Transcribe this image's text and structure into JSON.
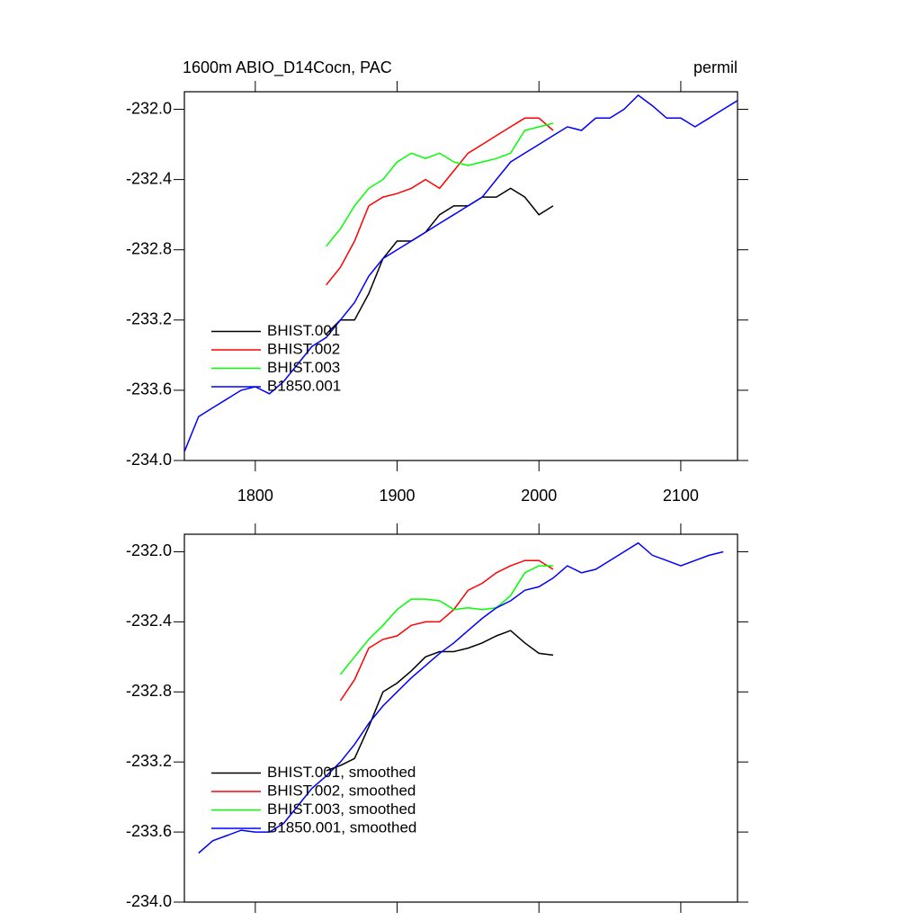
{
  "chart_data": [
    {
      "type": "line",
      "title": "1600m ABIO_D14Cocn, PAC",
      "right_title": "permil",
      "x": [
        1750,
        1760,
        1770,
        1780,
        1790,
        1800,
        1810,
        1820,
        1830,
        1840,
        1850,
        1860,
        1870,
        1880,
        1890,
        1900,
        1910,
        1920,
        1930,
        1940,
        1950,
        1960,
        1970,
        1980,
        1990,
        2000,
        2010,
        2020,
        2030,
        2040,
        2050,
        2060,
        2070,
        2080,
        2090,
        2100,
        2110,
        2120,
        2130,
        2140
      ],
      "xlim": [
        1750,
        2140
      ],
      "xticks": [
        1800,
        1900,
        2000,
        2100
      ],
      "ylim": [
        -234.0,
        -231.9
      ],
      "yticks": [
        {
          "value": -234,
          "label": "-234.0"
        },
        {
          "value": -233.6,
          "label": "-233.6"
        },
        {
          "value": -233.2,
          "label": "-233.2"
        },
        {
          "value": -232.8,
          "label": "-232.8"
        },
        {
          "value": -232.4,
          "label": "-232.4"
        },
        {
          "value": -232,
          "label": "-232.0"
        }
      ],
      "legend": "lower left",
      "xtick_labels": true,
      "series": [
        {
          "name": "BHIST.001",
          "color": "#000000",
          "values": [
            null,
            null,
            null,
            null,
            null,
            null,
            null,
            null,
            null,
            null,
            -233.28,
            -233.2,
            -233.2,
            -233.05,
            -232.85,
            -232.75,
            -232.75,
            -232.7,
            -232.6,
            -232.55,
            -232.55,
            -232.5,
            -232.5,
            -232.45,
            -232.5,
            -232.6,
            -232.55,
            null,
            null,
            null,
            null,
            null,
            null,
            null,
            null,
            null,
            null,
            null,
            null,
            null
          ]
        },
        {
          "name": "BHIST.002",
          "color": "#ff0000",
          "values": [
            null,
            null,
            null,
            null,
            null,
            null,
            null,
            null,
            null,
            null,
            -233.0,
            -232.9,
            -232.75,
            -232.55,
            -232.5,
            -232.48,
            -232.45,
            -232.4,
            -232.45,
            -232.35,
            -232.25,
            -232.2,
            -232.15,
            -232.1,
            -232.05,
            -232.05,
            -232.12,
            null,
            null,
            null,
            null,
            null,
            null,
            null,
            null,
            null,
            null,
            null,
            null,
            null
          ]
        },
        {
          "name": "BHIST.003",
          "color": "#00ff00",
          "values": [
            null,
            null,
            null,
            null,
            null,
            null,
            null,
            null,
            null,
            null,
            -232.78,
            -232.68,
            -232.55,
            -232.45,
            -232.4,
            -232.3,
            -232.25,
            -232.28,
            -232.25,
            -232.3,
            -232.32,
            -232.3,
            -232.28,
            -232.25,
            -232.12,
            -232.1,
            -232.08,
            null,
            null,
            null,
            null,
            null,
            null,
            null,
            null,
            null,
            null,
            null,
            null,
            null
          ]
        },
        {
          "name": "B1850.001",
          "color": "#0000ff",
          "values": [
            -233.95,
            -233.75,
            -233.7,
            -233.65,
            -233.6,
            -233.58,
            -233.62,
            -233.55,
            -233.45,
            -233.35,
            -233.3,
            -233.2,
            -233.1,
            -232.95,
            -232.85,
            -232.8,
            -232.75,
            -232.7,
            -232.65,
            -232.6,
            -232.55,
            -232.5,
            -232.4,
            -232.3,
            -232.25,
            -232.2,
            -232.15,
            -232.1,
            -232.12,
            -232.05,
            -232.05,
            -232.0,
            -231.92,
            -231.98,
            -232.05,
            -232.05,
            -232.1,
            -232.05,
            -232.0,
            -231.95
          ]
        }
      ]
    },
    {
      "type": "line",
      "x": [
        1750,
        1760,
        1770,
        1780,
        1790,
        1800,
        1810,
        1820,
        1830,
        1840,
        1850,
        1860,
        1870,
        1880,
        1890,
        1900,
        1910,
        1920,
        1930,
        1940,
        1950,
        1960,
        1970,
        1980,
        1990,
        2000,
        2010,
        2020,
        2030,
        2040,
        2050,
        2060,
        2070,
        2080,
        2090,
        2100,
        2110,
        2120,
        2130,
        2140
      ],
      "xlim": [
        1750,
        2140
      ],
      "xticks": [
        1800,
        1900,
        2000,
        2100
      ],
      "ylim": [
        -234.0,
        -231.9
      ],
      "yticks": [
        {
          "value": -234,
          "label": "-234.0"
        },
        {
          "value": -233.6,
          "label": "-233.6"
        },
        {
          "value": -233.2,
          "label": "-233.2"
        },
        {
          "value": -232.8,
          "label": "-232.8"
        },
        {
          "value": -232.4,
          "label": "-232.4"
        },
        {
          "value": -232,
          "label": "-232.0"
        }
      ],
      "legend": "lower left",
      "xtick_labels": false,
      "series": [
        {
          "name": "BHIST.001, smoothed",
          "color": "#000000",
          "values": [
            null,
            null,
            null,
            null,
            null,
            null,
            null,
            null,
            null,
            null,
            -233.25,
            -233.22,
            -233.18,
            -233.0,
            -232.8,
            -232.75,
            -232.68,
            -232.6,
            -232.57,
            -232.57,
            -232.55,
            -232.52,
            -232.48,
            -232.45,
            -232.52,
            -232.58,
            -232.59,
            null,
            null,
            null,
            null,
            null,
            null,
            null,
            null,
            null,
            null,
            null,
            null,
            null
          ]
        },
        {
          "name": "BHIST.002, smoothed",
          "color": "#ff0000",
          "values": [
            null,
            null,
            null,
            null,
            null,
            null,
            null,
            null,
            null,
            null,
            null,
            -232.85,
            -232.73,
            -232.55,
            -232.5,
            -232.48,
            -232.42,
            -232.4,
            -232.4,
            -232.33,
            -232.22,
            -232.18,
            -232.12,
            -232.08,
            -232.05,
            -232.05,
            -232.1,
            null,
            null,
            null,
            null,
            null,
            null,
            null,
            null,
            null,
            null,
            null,
            null,
            null
          ]
        },
        {
          "name": "BHIST.003, smoothed",
          "color": "#00ff00",
          "values": [
            null,
            null,
            null,
            null,
            null,
            null,
            null,
            null,
            null,
            null,
            null,
            -232.7,
            -232.6,
            -232.5,
            -232.42,
            -232.33,
            -232.27,
            -232.27,
            -232.28,
            -232.33,
            -232.32,
            -232.33,
            -232.32,
            -232.25,
            -232.12,
            -232.08,
            -232.08,
            null,
            null,
            null,
            null,
            null,
            null,
            null,
            null,
            null,
            null,
            null,
            null,
            null
          ]
        },
        {
          "name": "B1850.001, smoothed",
          "color": "#0000ff",
          "values": [
            null,
            -233.72,
            -233.65,
            -233.62,
            -233.59,
            -233.6,
            -233.6,
            -233.55,
            -233.45,
            -233.35,
            -233.28,
            -233.2,
            -233.1,
            -232.98,
            -232.88,
            -232.8,
            -232.72,
            -232.65,
            -232.58,
            -232.52,
            -232.45,
            -232.38,
            -232.32,
            -232.28,
            -232.22,
            -232.2,
            -232.15,
            -232.08,
            -232.12,
            -232.1,
            -232.05,
            -232.0,
            -231.95,
            -232.02,
            -232.05,
            -232.08,
            -232.05,
            -232.02,
            -232.0,
            null
          ]
        }
      ]
    }
  ]
}
